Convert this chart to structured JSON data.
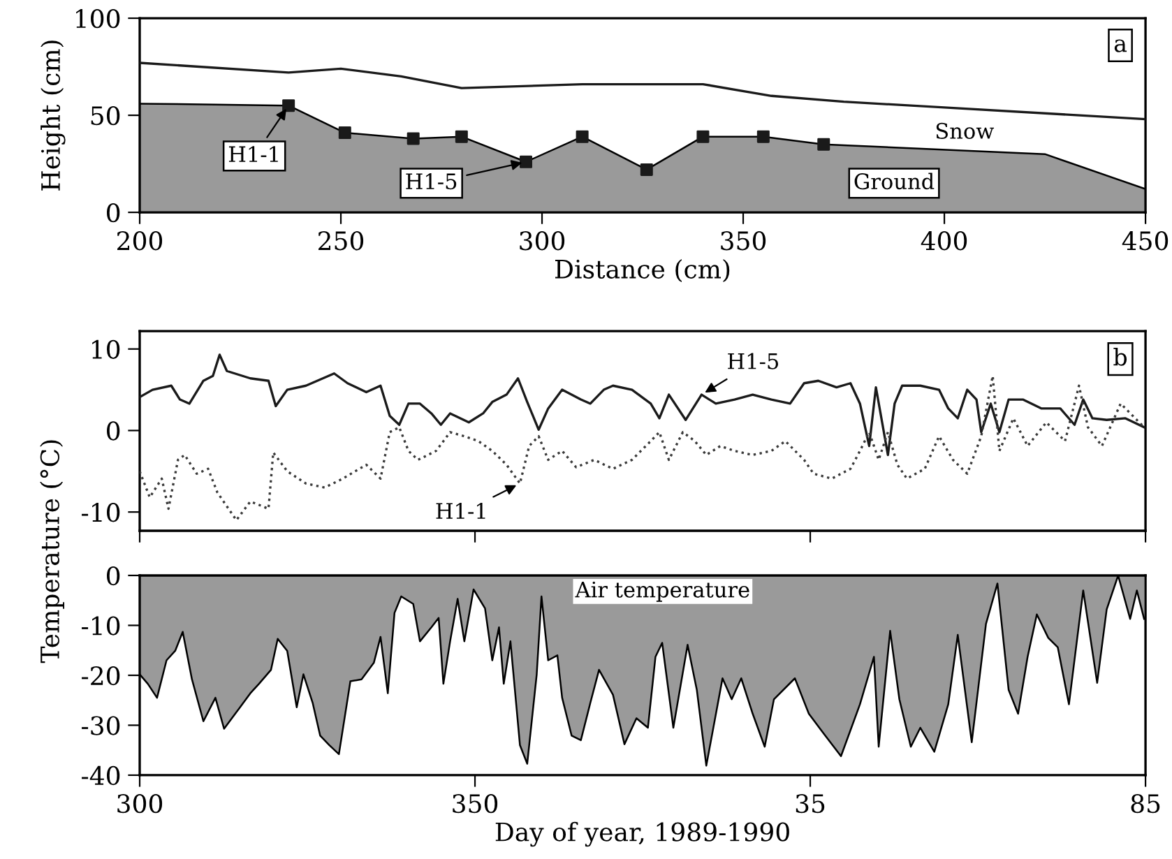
{
  "chart_data": [
    {
      "type": "line",
      "xlabel": "Distance (cm)",
      "ylabel": "Height (cm)",
      "xlim": [
        200,
        450
      ],
      "ylim": [
        0,
        100
      ],
      "xticks": [
        200,
        250,
        300,
        350,
        400,
        450
      ],
      "yticks": [
        0,
        50,
        100
      ],
      "grid": false,
      "legend": false,
      "annotations": [
        "a",
        {
          "text": "H1-1",
          "x": 237,
          "y": 55
        },
        {
          "text": "H1-5",
          "x": 296,
          "y": 26
        }
      ],
      "series": [
        {
          "name": "Snow",
          "type": "line",
          "color": "#1a1a1a",
          "x": [
            200,
            237,
            250,
            265,
            280,
            310,
            340,
            357,
            375,
            400,
            450
          ],
          "values": [
            77,
            72,
            74,
            70,
            64,
            66,
            66,
            60,
            57,
            54,
            48
          ]
        },
        {
          "name": "Ground",
          "type": "area",
          "color": "#9a9a9a",
          "x": [
            200,
            237,
            251,
            268,
            280,
            296,
            310,
            326,
            340,
            355,
            370,
            425,
            450
          ],
          "values": [
            56,
            55,
            41,
            38,
            39,
            26,
            39,
            22,
            39,
            39,
            35,
            30,
            12
          ]
        },
        {
          "type": "scatter",
          "color": "#1a1a1a",
          "marker": "square",
          "x": [
            237,
            251,
            268,
            280,
            296,
            310,
            326,
            340,
            355,
            370
          ],
          "values": [
            55,
            41,
            38,
            39,
            26,
            39,
            22,
            39,
            39,
            35
          ]
        }
      ]
    },
    {
      "type": "line",
      "ylabel": "Temperature (°C)",
      "xlim": [
        "1989-10-27",
        "1990-03-26"
      ],
      "ylim": [
        -12.3,
        12.2
      ],
      "xticks": [
        {
          "value": "1989-10-27",
          "label": null
        },
        {
          "value": "1989-12-16",
          "label": null
        },
        {
          "value": "1990-02-04",
          "label": null
        },
        {
          "value": "1990-03-26",
          "label": null
        }
      ],
      "yticks": [
        -10,
        0,
        10
      ],
      "tick_labels": "y",
      "grid": false,
      "legend": false,
      "annotations": [
        "b"
      ],
      "series": [
        {
          "name": "H1-5",
          "color": "#1a1a1a",
          "line_style": "solid",
          "x": [
            "1989-10-27T00:00",
            "1989-10-28T22:00",
            "1989-10-31T17:00",
            "1989-11-02T00:00",
            "1989-11-03T10:00",
            "1989-11-05T12:00",
            "1989-11-06T22:00",
            "1989-11-07T22:00",
            "1989-11-09T00:00",
            "1989-11-12T12:00",
            "1989-11-15T05:00",
            "1989-11-16T07:00",
            "1989-11-18T00:00",
            "1989-11-20T19:00",
            "1989-11-25T00:00",
            "1989-11-27T00:00",
            "1989-11-29T19:00",
            "1989-12-01T22:00",
            "1989-12-03T07:00",
            "1989-12-04T17:00",
            "1989-12-06T02:00",
            "1989-12-07T19:00",
            "1989-12-09T12:00",
            "1989-12-10T22:00",
            "1989-12-12T07:00",
            "1989-12-15T02:00",
            "1989-12-17T05:00",
            "1989-12-18T14:00",
            "1989-12-20T17:00",
            "1989-12-22T10:00",
            "1989-12-23T19:00",
            "1989-12-25T12:00",
            "1989-12-26T22:00",
            "1989-12-29T00:00",
            "1989-12-31T19:00",
            "1990-01-02T05:00",
            "1990-01-04T05:00",
            "1990-01-05T14:00",
            "1990-01-08T10:00",
            "1990-01-11T05:00",
            "1990-01-12T12:00",
            "1990-01-13T22:00",
            "1990-01-16T10:00",
            "1990-01-18T19:00",
            "1990-01-20T22:00",
            "1990-01-23T17:00",
            "1990-01-26T10:00",
            "1990-01-29T05:00",
            "1990-02-01T00:00",
            "1990-02-03T02:00",
            "1990-02-05T05:00",
            "1990-02-07T22:00",
            "1990-02-10T00:00",
            "1990-02-11T10:00",
            "1990-02-12T19:00",
            "1990-02-13T19:00",
            "1990-02-15T14:00",
            "1990-02-16T14:00",
            "1990-02-17T17:00",
            "1990-02-20T10:00",
            "1990-02-23T05:00",
            "1990-02-24T14:00",
            "1990-02-26T00:00",
            "1990-02-27T10:00",
            "1990-02-28T19:00",
            "1990-03-01T12:00",
            "1990-03-02T22:00",
            "1990-03-04T05:00",
            "1990-03-05T14:00",
            "1990-03-07T17:00",
            "1990-03-10T12:00",
            "1990-03-13T07:00",
            "1990-03-15T10:00",
            "1990-03-16T17:00",
            "1990-03-18T02:00",
            "1990-03-20T05:00",
            "1990-03-23T00:00",
            "1990-03-25T19:00"
          ],
          "values": [
            4.1,
            5,
            5.5,
            3.8,
            3.3,
            6.1,
            6.7,
            9.3,
            7.3,
            6.4,
            6.1,
            3,
            5,
            5.5,
            7,
            5.8,
            4.7,
            5.5,
            1.8,
            0.7,
            3.3,
            3.3,
            2.1,
            0.7,
            2.1,
            1,
            2.1,
            3.5,
            4.4,
            6.4,
            3.5,
            0.1,
            2.7,
            5,
            3.8,
            3.3,
            5,
            5.5,
            5,
            3.3,
            1.5,
            4.4,
            1.3,
            4.4,
            3.3,
            3.8,
            4.4,
            3.8,
            3.3,
            5.8,
            6.1,
            5.3,
            5.8,
            3.3,
            -1.9,
            5.3,
            -3,
            3.3,
            5.5,
            5.5,
            5,
            2.7,
            1.5,
            5,
            3.8,
            -0.2,
            3.3,
            -0.2,
            3.8,
            3.8,
            2.7,
            2.7,
            0.7,
            3.8,
            1.5,
            1.3,
            1.5,
            0.4
          ]
        },
        {
          "name": "H1-1",
          "color": "#3a3a3a",
          "line_style": "dotted",
          "x": [
            "1989-10-27T00:00",
            "1989-10-28T12:00",
            "1989-10-30T07:00",
            "1989-10-31T07:00",
            "1989-11-01T17:00",
            "1989-11-02T17:00",
            "1989-11-04T12:00",
            "1989-11-06T05:00",
            "1989-11-07T14:00",
            "1989-11-09T00:00",
            "1989-11-10T10:00",
            "1989-11-12T12:00",
            "1989-11-15T05:00",
            "1989-11-15T22:00",
            "1989-11-18T00:00",
            "1989-11-20T19:00",
            "1989-11-23T14:00",
            "1989-11-26T07:00",
            "1989-11-29T19:00",
            "1989-12-01T22:00",
            "1989-12-03T07:00",
            "1989-12-04T17:00",
            "1989-12-06T02:00",
            "1989-12-07T12:00",
            "1989-12-10T05:00",
            "1989-12-12T07:00",
            "1989-12-14T10:00",
            "1989-12-16T12:00",
            "1989-12-18T14:00",
            "1989-12-20T17:00",
            "1989-12-22T17:00",
            "1989-12-24T02:00",
            "1989-12-25T12:00",
            "1989-12-26T22:00",
            "1989-12-29T00:00",
            "1989-12-31T02:00",
            "1990-01-02T19:00",
            "1990-01-05T14:00",
            "1990-01-08T10:00",
            "1990-01-11T05:00",
            "1990-01-12T12:00",
            "1990-01-13T22:00",
            "1990-01-16T00:00",
            "1990-01-17T19:00",
            "1990-01-19T12:00",
            "1990-01-21T14:00",
            "1990-01-23T17:00",
            "1990-01-26T10:00",
            "1990-01-29T05:00",
            "1990-01-31T07:00",
            "1990-02-03T02:00",
            "1990-02-04T12:00",
            "1990-02-07T05:00",
            "1990-02-10T00:00",
            "1990-02-11T10:00",
            "1990-02-12T19:00",
            "1990-02-14T05:00",
            "1990-02-15T14:00",
            "1990-02-17T00:00",
            "1990-02-18T10:00",
            "1990-02-21T02:00",
            "1990-02-23T05:00",
            "1990-02-25T07:00",
            "1990-02-27T10:00",
            "1990-03-01T12:00",
            "1990-03-03T05:00",
            "1990-03-04T05:00",
            "1990-03-06T07:00",
            "1990-03-08T10:00",
            "1990-03-11T05:00",
            "1990-03-14T00:00",
            "1990-03-16T02:00",
            "1990-03-17T10:00",
            "1990-03-19T12:00",
            "1990-03-22T07:00",
            "1990-03-25T19:00"
          ],
          "values": [
            -5,
            -8.2,
            -5.9,
            -9.6,
            -3.6,
            -3,
            -5.3,
            -4.7,
            -7.6,
            -9.3,
            -11,
            -8.7,
            -9.6,
            -2.7,
            -5,
            -6.5,
            -7,
            -5.9,
            -4.2,
            -5.9,
            -0.2,
            0.4,
            -2.5,
            -3.6,
            -2.5,
            -0.2,
            -0.7,
            -1.3,
            -2.5,
            -4.2,
            -6.5,
            -1.9,
            -0.7,
            -3.6,
            -2.5,
            -4.5,
            -3.6,
            -4.7,
            -3.6,
            -1.3,
            -0.2,
            -3.6,
            -0.2,
            -1.3,
            -3,
            -1.9,
            -2.5,
            -3,
            -2.5,
            -1.3,
            -3.6,
            -5.3,
            -5.9,
            -4.7,
            -2.5,
            -0.2,
            -3.6,
            -0.2,
            -4.2,
            -5.9,
            -4.7,
            -0.7,
            -3.6,
            -5.3,
            -0.7,
            6.7,
            -2.5,
            1.5,
            -1.9,
            1,
            -1.3,
            5.5,
            0.4,
            -1.9,
            3.3,
            0.4
          ]
        }
      ]
    },
    {
      "type": "area",
      "xlabel": "Day of year, 1989-1990",
      "xlim": [
        "1989-10-27",
        "1990-03-26"
      ],
      "ylim": [
        -40,
        0
      ],
      "xticks": [
        {
          "value": "1989-10-27",
          "label": "300"
        },
        {
          "value": "1989-12-16",
          "label": "350"
        },
        {
          "value": "1990-02-04",
          "label": "35"
        },
        {
          "value": "1990-03-26",
          "label": "85"
        }
      ],
      "yticks": [
        -40,
        -30,
        -20,
        -10,
        0
      ],
      "grid": false,
      "legend": false,
      "series": [
        {
          "name": "Air temperature",
          "color": "#9a9a9a",
          "x": [
            "1989-10-27T00:00",
            "1989-10-28T05:00",
            "1989-10-29T14:00",
            "1989-10-31T00:00",
            "1989-11-01T07:00",
            "1989-11-02T10:00",
            "1989-11-03T19:00",
            "1989-11-05T12:00",
            "1989-11-07T07:00",
            "1989-11-08T14:00",
            "1989-11-10T10:00",
            "1989-11-12T12:00",
            "1989-11-13T19:00",
            "1989-11-15T14:00",
            "1989-11-16T14:00",
            "1989-11-18T00:00",
            "1989-11-19T10:00",
            "1989-11-20T10:00",
            "1989-11-21T19:00",
            "1989-11-22T22:00",
            "1989-11-24T07:00",
            "1989-11-25T17:00",
            "1989-11-27T10:00",
            "1989-11-29T02:00",
            "1989-11-30T22:00",
            "1989-12-01T22:00",
            "1989-12-03T00:00",
            "1989-12-04T00:00",
            "1989-12-05T00:00",
            "1989-12-06T19:00",
            "1989-12-07T19:00",
            "1989-12-09T12:00",
            "1989-12-10T14:00",
            "1989-12-11T07:00",
            "1989-12-12T07:00",
            "1989-12-13T10:00",
            "1989-12-14T10:00",
            "1989-12-15T19:00",
            "1989-12-17T12:00",
            "1989-12-18T14:00",
            "1989-12-19T14:00",
            "1989-12-20T07:00",
            "1989-12-21T07:00",
            "1989-12-22T17:00",
            "1989-12-23T19:00",
            "1989-12-25T05:00",
            "1989-12-25T22:00",
            "1989-12-26T22:00",
            "1989-12-28T07:00",
            "1989-12-29T00:00",
            "1989-12-30T10:00",
            "1989-12-31T19:00",
            "1990-01-02T05:00",
            "1990-01-03T12:00",
            "1990-01-05T14:00",
            "1990-01-07T07:00",
            "1990-01-09T02:00",
            "1990-01-10T19:00",
            "1990-01-11T22:00",
            "1990-01-12T22:00",
            "1990-01-14T14:00",
            "1990-01-16T17:00",
            "1990-01-18T02:00",
            "1990-01-19T12:00",
            "1990-01-21T22:00",
            "1990-01-23T07:00",
            "1990-01-24T17:00",
            "1990-01-26T10:00",
            "1990-01-28T05:00",
            "1990-01-29T14:00",
            "1990-02-01T17:00",
            "1990-02-03T19:00",
            "1990-02-05T22:00",
            "1990-02-08T14:00",
            "1990-02-11T10:00",
            "1990-02-13T12:00",
            "1990-02-14T05:00",
            "1990-02-15T22:00",
            "1990-02-17T07:00",
            "1990-02-19T00:00",
            "1990-02-20T10:00",
            "1990-02-22T12:00",
            "1990-02-24T14:00",
            "1990-02-26T00:00",
            "1990-02-28T02:00",
            "1990-03-02T05:00",
            "1990-03-03T22:00",
            "1990-03-05T14:00",
            "1990-03-07T00:00",
            "1990-03-08T10:00",
            "1990-03-09T19:00",
            "1990-03-11T12:00",
            "1990-03-12T22:00",
            "1990-03-14T14:00",
            "1990-03-16T17:00",
            "1990-03-18T19:00",
            "1990-03-20T05:00",
            "1990-03-21T22:00",
            "1990-03-23T17:00",
            "1990-03-24T17:00",
            "1990-03-25T19:00"
          ],
          "values": [
            -19.8,
            -21.7,
            -24.5,
            -17,
            -15.1,
            -11.3,
            -20.8,
            -29.2,
            -24.5,
            -30.7,
            -27.4,
            -23.6,
            -21.7,
            -18.9,
            -12.7,
            -15.1,
            -26.4,
            -19.8,
            -25.5,
            -32.1,
            -34,
            -35.8,
            -21.2,
            -20.8,
            -17.5,
            -12.3,
            -23.6,
            -7.5,
            -4.2,
            -5.7,
            -13.2,
            -10.4,
            -8.5,
            -21.7,
            -13.2,
            -4.7,
            -13.2,
            -2.8,
            -6.6,
            -17,
            -10.4,
            -21.7,
            -13.2,
            -34,
            -37.7,
            -19.8,
            -4.2,
            -17,
            -16,
            -24.5,
            -32.1,
            -33,
            -25.5,
            -18.9,
            -23.9,
            -33.8,
            -28.6,
            -30.5,
            -16.3,
            -13.5,
            -30.5,
            -13.9,
            -22.9,
            -38.1,
            -20.6,
            -24.8,
            -20.6,
            -27.7,
            -34.3,
            -24.8,
            -20.6,
            -27.7,
            -31.5,
            -36.2,
            -25.8,
            -16.3,
            -34.3,
            -11.1,
            -24.8,
            -34.3,
            -30.5,
            -35.3,
            -25.8,
            -11.9,
            -33.4,
            -9.7,
            -1.6,
            -22.9,
            -27.7,
            -16.3,
            -7.8,
            -12.5,
            -14.4,
            -25.8,
            -3,
            -21.5,
            -6.8,
            0,
            -8.7,
            -3,
            -8.7
          ]
        }
      ]
    }
  ]
}
